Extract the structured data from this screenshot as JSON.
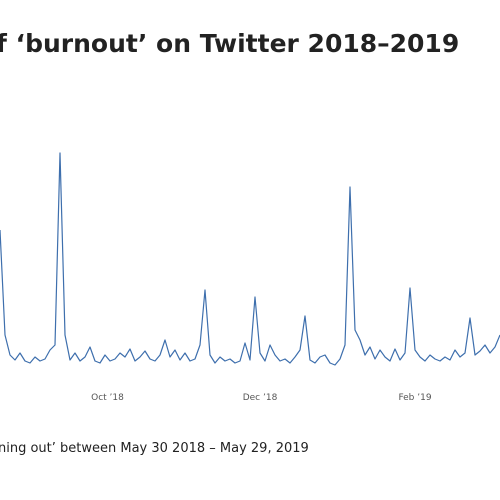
{
  "chart_data": {
    "type": "line",
    "title": "f ‘burnout’ on Twitter 2018–2019",
    "footnote": "ning out’ between May 30 2018 – May 29, 2019",
    "x": [
      81,
      83,
      85,
      87,
      89,
      91,
      93,
      95,
      97,
      99,
      101,
      103,
      105,
      107,
      109,
      111,
      113,
      115,
      117,
      119,
      121,
      123,
      125,
      127,
      129,
      131,
      133,
      135,
      137,
      139,
      141,
      143,
      145,
      147,
      149,
      151,
      153,
      155,
      157,
      159,
      161,
      163,
      165,
      167,
      169,
      171,
      173,
      175,
      177,
      179,
      181,
      183,
      185,
      187,
      189,
      191,
      193,
      195,
      197,
      199,
      201,
      203,
      205,
      207,
      209,
      211,
      213,
      215,
      217,
      219,
      221,
      223,
      225,
      227,
      229,
      231,
      233,
      235,
      237,
      239,
      241,
      243,
      245,
      247,
      249,
      251,
      253,
      255,
      257,
      259,
      261,
      263,
      265,
      267,
      269,
      271,
      273,
      275,
      277,
      279,
      281
    ],
    "series": [
      {
        "color": "#3e6fad",
        "values": [
          145,
          40,
          20,
          15,
          22,
          14,
          12,
          18,
          14,
          16,
          25,
          30,
          222,
          40,
          15,
          22,
          14,
          18,
          28,
          14,
          12,
          20,
          14,
          16,
          22,
          18,
          26,
          14,
          18,
          24,
          16,
          14,
          20,
          35,
          18,
          25,
          15,
          22,
          14,
          16,
          30,
          85,
          20,
          12,
          18,
          14,
          16,
          12,
          14,
          32,
          15,
          78,
          22,
          14,
          30,
          20,
          14,
          16,
          12,
          18,
          25,
          59,
          15,
          12,
          18,
          20,
          12,
          10,
          16,
          30,
          188,
          45,
          35,
          20,
          28,
          16,
          25,
          18,
          14,
          26,
          15,
          22,
          87,
          25,
          18,
          14,
          20,
          16,
          14,
          18,
          15,
          25,
          18,
          22,
          57,
          20,
          24,
          30,
          22,
          28,
          40
        ]
      }
    ],
    "xlim": [
      81,
      281
    ],
    "xticks": [
      {
        "value": 124,
        "label": "Oct ’18"
      },
      {
        "value": 185,
        "label": "Dec ’18"
      },
      {
        "value": 247,
        "label": "Feb ’19"
      }
    ],
    "ylim": [
      0,
      230
    ]
  }
}
